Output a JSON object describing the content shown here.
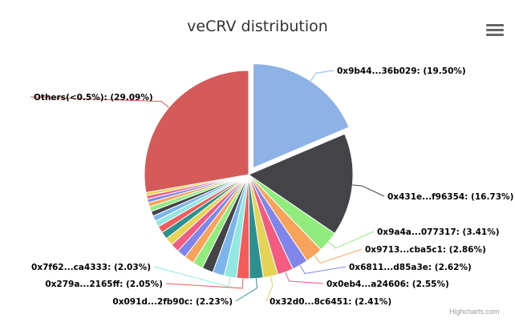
{
  "chart": {
    "title": "veCRV distribution",
    "credit": "Highcharts.com"
  },
  "chart_data": {
    "type": "pie",
    "title": "veCRV distribution",
    "unit": "%",
    "legend": "none (data labels with connectors)",
    "slices": [
      {
        "label": "0x9b44...36b029: (19.50%)",
        "value": 19.5,
        "color": "#8db3e6",
        "sliced": true
      },
      {
        "label": "0x431e...f96354: (16.73%)",
        "value": 16.73,
        "color": "#434348"
      },
      {
        "label": "0x9a4a...077317: (3.41%)",
        "value": 3.41,
        "color": "#90ed7d"
      },
      {
        "label": "0x9713...cba5c1: (2.86%)",
        "value": 2.86,
        "color": "#f7a35c"
      },
      {
        "label": "0x6811...d85a3e: (2.62%)",
        "value": 2.62,
        "color": "#8085e9"
      },
      {
        "label": "0x0eb4...a24606: (2.55%)",
        "value": 2.55,
        "color": "#f15c80"
      },
      {
        "label": "0x32d0...8c6451: (2.41%)",
        "value": 2.41,
        "color": "#e4d354"
      },
      {
        "label": "0x091d...2fb90c: (2.23%)",
        "value": 2.23,
        "color": "#2b908f"
      },
      {
        "label": "0x279a...2165ff: (2.05%)",
        "value": 2.05,
        "color": "#f45b5b"
      },
      {
        "label": "0x7f62...ca4333: (2.03%)",
        "value": 2.03,
        "color": "#91e8e1"
      },
      {
        "value": 1.9,
        "color": "#7cb5ec"
      },
      {
        "value": 1.8,
        "color": "#434348"
      },
      {
        "value": 1.7,
        "color": "#90ed7d"
      },
      {
        "value": 1.6,
        "color": "#f7a35c"
      },
      {
        "value": 1.5,
        "color": "#8085e9"
      },
      {
        "value": 1.4,
        "color": "#f15c80"
      },
      {
        "value": 1.3,
        "color": "#e4d354"
      },
      {
        "value": 1.2,
        "color": "#2b908f"
      },
      {
        "value": 1.1,
        "color": "#f45b5b"
      },
      {
        "value": 1.0,
        "color": "#91e8e1"
      },
      {
        "value": 0.9,
        "color": "#7cb5ec"
      },
      {
        "value": 0.8,
        "color": "#434348"
      },
      {
        "value": 0.78,
        "color": "#90ed7d"
      },
      {
        "value": 0.7,
        "color": "#f7a35c"
      },
      {
        "value": 0.6,
        "color": "#8085e9"
      },
      {
        "value": 0.55,
        "color": "#f15c80"
      },
      {
        "value": 0.52,
        "color": "#e4d354"
      },
      {
        "label": "Others(<0.5%): (29.09%)",
        "value": 29.09,
        "color": "#d55a5a"
      }
    ]
  }
}
